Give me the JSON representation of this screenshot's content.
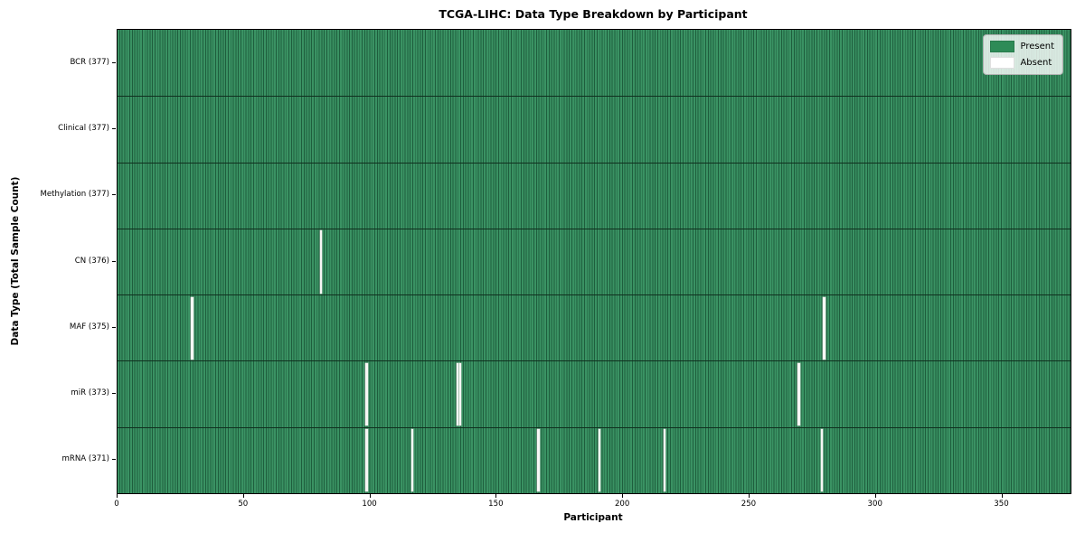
{
  "chart_data": {
    "type": "heatmap",
    "title": "TCGA-LIHC: Data Type Breakdown by Participant",
    "xlabel": "Participant",
    "ylabel": "Data Type (Total Sample Count)",
    "xlim": [
      0,
      377
    ],
    "x_ticks": [
      0,
      50,
      100,
      150,
      200,
      250,
      300,
      350
    ],
    "n_participants": 377,
    "grid": false,
    "legend_position": "upper right",
    "legend": [
      {
        "label": "Present",
        "color": "#2e8b57"
      },
      {
        "label": "Absent",
        "color": "#ffffff"
      }
    ],
    "colors": {
      "present": "#2e8b57",
      "cell_edge": "#1e5e3d",
      "row_divider": "#10301f",
      "absent": "#ffffff"
    },
    "rows": [
      {
        "label": "BCR (377)",
        "data_type": "BCR",
        "present_count": 377,
        "absent_count": 0,
        "absent_participants": []
      },
      {
        "label": "Clinical (377)",
        "data_type": "Clinical",
        "present_count": 377,
        "absent_count": 0,
        "absent_participants": []
      },
      {
        "label": "Methylation (377)",
        "data_type": "Methylation",
        "present_count": 377,
        "absent_count": 0,
        "absent_participants": []
      },
      {
        "label": "CN (376)",
        "data_type": "CN",
        "present_count": 376,
        "absent_count": 1,
        "absent_participants": [
          80
        ]
      },
      {
        "label": "MAF (375)",
        "data_type": "MAF",
        "present_count": 375,
        "absent_count": 2,
        "absent_participants": [
          29,
          279
        ]
      },
      {
        "label": "miR (373)",
        "data_type": "miR",
        "present_count": 373,
        "absent_count": 4,
        "absent_participants": [
          98,
          134,
          135,
          269
        ]
      },
      {
        "label": "mRNA (371)",
        "data_type": "mRNA",
        "present_count": 371,
        "absent_count": 6,
        "absent_participants": [
          98,
          116,
          166,
          190,
          216,
          278
        ]
      }
    ]
  }
}
